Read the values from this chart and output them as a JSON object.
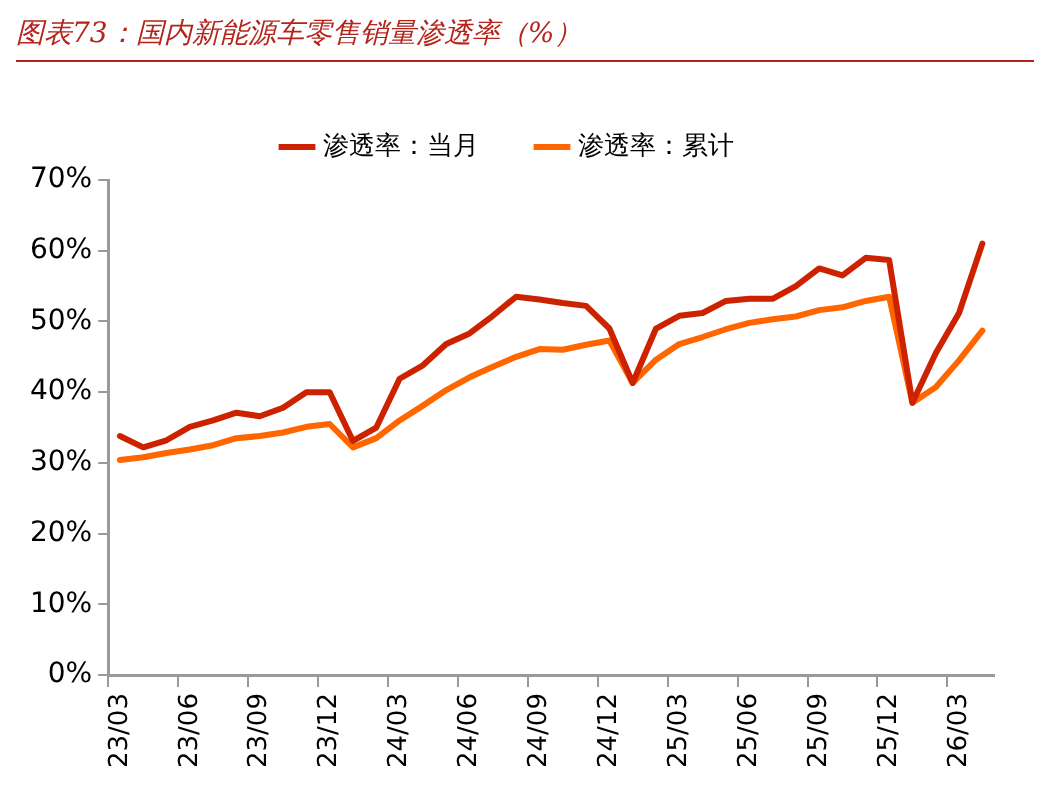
{
  "chart_data": {
    "type": "line",
    "title": "图表73：国内新能源车零售销量渗透率（%）",
    "categories": [
      "23/03",
      null,
      null,
      "23/06",
      null,
      null,
      "23/09",
      null,
      null,
      "23/12",
      null,
      null,
      "24/03",
      null,
      null,
      "24/06",
      null,
      null,
      "24/09",
      null,
      null,
      "24/12",
      null,
      null,
      "25/03",
      null,
      null,
      "25/06",
      null,
      null,
      "25/09",
      null,
      null,
      "25/12",
      null,
      null,
      "26/03",
      null
    ],
    "series": [
      {
        "name": "渗透率：当月",
        "color": "#cc2200",
        "values": [
          33.8,
          32.2,
          33.2,
          35.1,
          36,
          37.1,
          36.6,
          37.8,
          40,
          40,
          33.1,
          35,
          41.9,
          43.8,
          46.8,
          48.3,
          50.8,
          53.5,
          53.1,
          52.6,
          52.2,
          49,
          41.3,
          49,
          50.8,
          51.2,
          52.9,
          53.2,
          53.2,
          55,
          57.5,
          56.5,
          59,
          58.7,
          38.5,
          45.5,
          51.2,
          61
        ]
      },
      {
        "name": "渗透率：累计",
        "color": "#ff6600",
        "values": [
          30.4,
          30.8,
          31.4,
          31.9,
          32.5,
          33.5,
          33.8,
          34.3,
          35.1,
          35.5,
          32.2,
          33.5,
          36,
          38.1,
          40.3,
          42.1,
          43.6,
          45,
          46.1,
          46,
          46.7,
          47.3,
          41.3,
          44.6,
          46.8,
          47.8,
          48.9,
          49.8,
          50.3,
          50.7,
          51.6,
          52,
          52.9,
          53.5,
          38.5,
          40.7,
          44.5,
          48.7
        ]
      }
    ],
    "ylim": [
      0,
      70
    ],
    "yticks": [
      {
        "value": 0,
        "label": "0%"
      },
      {
        "value": 10,
        "label": "10%"
      },
      {
        "value": 20,
        "label": "20%"
      },
      {
        "value": 30,
        "label": "30%"
      },
      {
        "value": 40,
        "label": "40%"
      },
      {
        "value": 50,
        "label": "50%"
      },
      {
        "value": 60,
        "label": "60%"
      },
      {
        "value": 70,
        "label": "70%"
      }
    ],
    "grid": false,
    "legend": "top",
    "marker": "none",
    "line_style": "solid"
  }
}
